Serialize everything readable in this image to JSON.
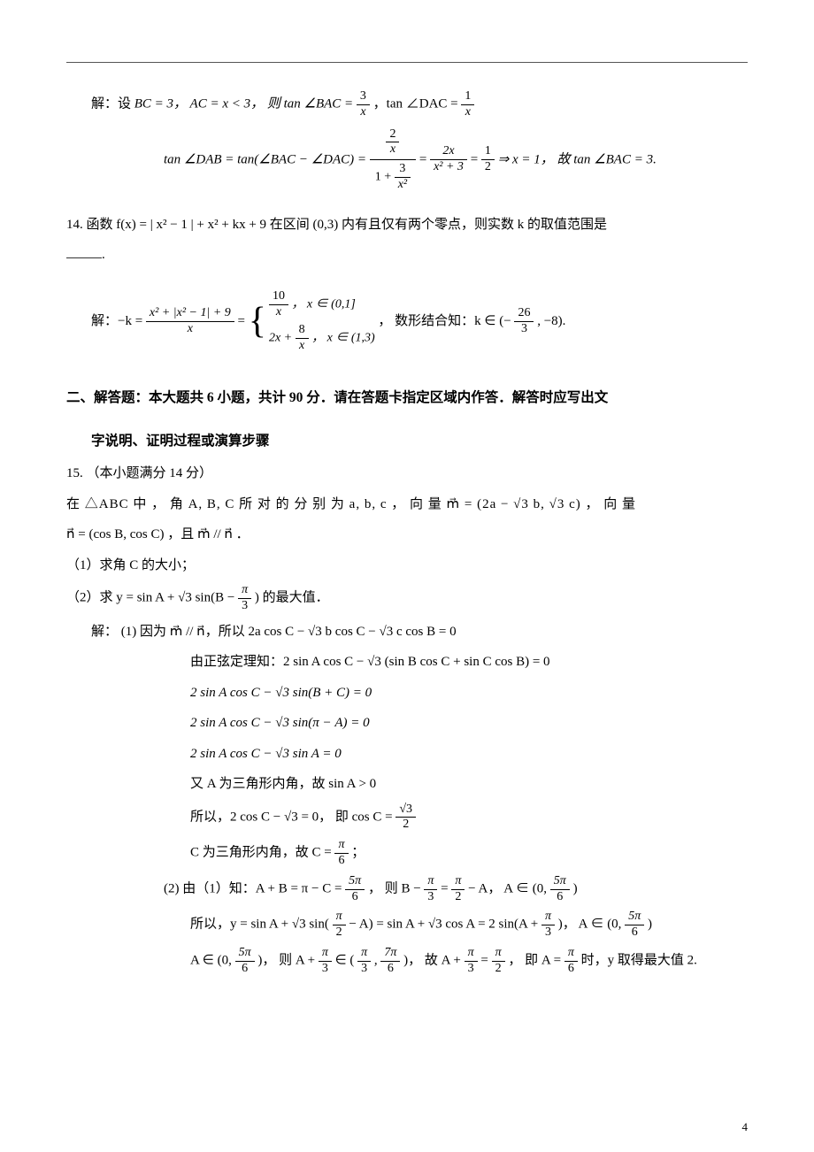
{
  "page_number": "4",
  "sol13": {
    "prefix": "解：设",
    "given1": "BC = 3，  AC = x < 3，  则 tan ∠BAC = ",
    "frac1_num": "3",
    "frac1_den": "x",
    "mid1": "，tan ∠DAC = ",
    "frac2_num": "1",
    "frac2_den": "x",
    "line2_left": "tan ∠DAB = tan(∠BAC − ∠DAC) = ",
    "big_num_top": "2",
    "big_num_bot_num": "x",
    "big_den_text": "1 + ",
    "big_den_frac_num": "3",
    "big_den_frac_den": "x²",
    "eq1": " = ",
    "frac3_num": "2x",
    "frac3_den": "x² + 3",
    "eq2": " = ",
    "frac4_num": "1",
    "frac4_den": "2",
    "tail": " ⇒ x = 1，  故 tan ∠BAC = 3."
  },
  "q14": {
    "text": "14. 函数 f(x) = | x² − 1 | + x² + kx + 9 在区间 (0,3) 内有且仅有两个零点，则实数 k 的取值范围是",
    "blank": "."
  },
  "sol14": {
    "prefix": "解：−k = ",
    "frac_num": "x² + |x² − 1| + 9",
    "frac_den": "x",
    "eq": " = ",
    "case1_left_num": "10",
    "case1_left_den": "x",
    "case1_right": "，  x ∈ (0,1]",
    "case2_left": "2x + ",
    "case2_frac_num": "8",
    "case2_frac_den": "x",
    "case2_right": "，  x ∈ (1,3)",
    "tail1": "，  数形结合知：k ∈ (− ",
    "tail_frac_num": "26",
    "tail_frac_den": "3",
    "tail2": " , −8)."
  },
  "section2": {
    "title1": "二、解答题：本大题共 6 小题，共计 90 分．请在答题卡指定区域内作答．解答时应写出文",
    "title2": "字说明、证明过程或演算步骤"
  },
  "q15": {
    "header": "15.  （本小题满分 14 分）",
    "body1": "在 △ABC 中 ， 角 A, B, C 所 对 的 分 别 为 a, b, c ，  向 量  m⃗ = (2a − √3 b, √3 c) ，  向 量",
    "body2": "n⃗ = (cos B, cos C) ，且 m⃗ // n⃗ ．",
    "p1": "（1）求角 C 的大小；",
    "p2_left": "（2）求 y = sin A + √3 sin(B − ",
    "p2_frac_num": "π",
    "p2_frac_den": "3",
    "p2_right": ") 的最大值．"
  },
  "sol15": {
    "prefix": "解：  (1) 因为 m⃗ // n⃗，所以 2a cos C − √3 b cos C − √3 c cos B = 0",
    "l2": "由正弦定理知：2 sin A cos C − √3 (sin B cos C + sin C cos B) = 0",
    "l3": "2 sin A cos C − √3 sin(B + C) = 0",
    "l4": "2 sin A cos C − √3 sin(π − A) = 0",
    "l5": "2 sin A cos C − √3 sin A = 0",
    "l6": "又 A 为三角形内角，故 sin A > 0",
    "l7_left": "所以，2 cos C − √3 = 0，  即 cos C = ",
    "l7_frac_num": "√3",
    "l7_frac_den": "2",
    "l8_left": "C 为三角形内角，故 C = ",
    "l8_frac_num": "π",
    "l8_frac_den": "6",
    "l8_right": "；",
    "p2l1_a": "(2) 由（1）知：A + B = π − C = ",
    "p2l1_f1n": "5π",
    "p2l1_f1d": "6",
    "p2l1_b": "，  则 B − ",
    "p2l1_f2n": "π",
    "p2l1_f2d": "3",
    "p2l1_c": " = ",
    "p2l1_f3n": "π",
    "p2l1_f3d": "2",
    "p2l1_d": " − A，  A ∈ (0, ",
    "p2l1_f4n": "5π",
    "p2l1_f4d": "6",
    "p2l1_e": ")",
    "p2l2_a": "所以，y = sin A + √3 sin(",
    "p2l2_f1n": "π",
    "p2l2_f1d": "2",
    "p2l2_b": " − A) = sin A + √3 cos A = 2 sin(A + ",
    "p2l2_f2n": "π",
    "p2l2_f2d": "3",
    "p2l2_c": ")，  A ∈ (0, ",
    "p2l2_f3n": "5π",
    "p2l2_f3d": "6",
    "p2l2_d": ")",
    "p2l3_a": "A ∈ (0, ",
    "p2l3_f1n": "5π",
    "p2l3_f1d": "6",
    "p2l3_b": ")，  则 A + ",
    "p2l3_f2n": "π",
    "p2l3_f2d": "3",
    "p2l3_c": " ∈ (",
    "p2l3_f3n": "π",
    "p2l3_f3d": "3",
    "p2l3_d": ", ",
    "p2l3_f4n": "7π",
    "p2l3_f4d": "6",
    "p2l3_e": ")，  故 A + ",
    "p2l3_f5n": "π",
    "p2l3_f5d": "3",
    "p2l3_f": " = ",
    "p2l3_f6n": "π",
    "p2l3_f6d": "2",
    "p2l3_g": "，  即 A = ",
    "p2l3_f7n": "π",
    "p2l3_f7d": "6",
    "p2l3_h": " 时，y 取得最大值 2."
  }
}
